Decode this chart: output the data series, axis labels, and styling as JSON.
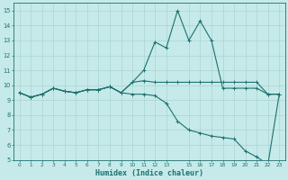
{
  "xlabel": "Humidex (Indice chaleur)",
  "xlim": [
    -0.5,
    23.5
  ],
  "ylim": [
    5,
    15.5
  ],
  "yticks": [
    5,
    6,
    7,
    8,
    9,
    10,
    11,
    12,
    13,
    14,
    15
  ],
  "xtick_vals": [
    0,
    1,
    2,
    3,
    4,
    5,
    6,
    7,
    8,
    9,
    10,
    11,
    12,
    13,
    15,
    16,
    17,
    18,
    19,
    20,
    21,
    22,
    23
  ],
  "xtick_labels": [
    "0",
    "1",
    "2",
    "3",
    "4",
    "5",
    "6",
    "7",
    "8",
    "9",
    "10",
    "11",
    "12",
    "13",
    "15",
    "16",
    "17",
    "18",
    "19",
    "20",
    "21",
    "22",
    "23"
  ],
  "bg_color": "#c5eae9",
  "grid_color": "#aad4d3",
  "line_color": "#1e7070",
  "line_width": 0.8,
  "marker": "+",
  "marker_size": 3,
  "curves": [
    [
      9.5,
      9.2,
      9.4,
      9.8,
      9.6,
      9.5,
      9.7,
      9.7,
      9.9,
      9.5,
      10.2,
      11.0,
      12.9,
      12.5,
      15.0,
      13.0,
      14.3,
      13.0,
      9.8,
      9.8,
      9.8,
      9.8,
      9.4,
      9.4
    ],
    [
      9.5,
      9.2,
      9.4,
      9.8,
      9.6,
      9.5,
      9.7,
      9.7,
      9.9,
      9.5,
      10.2,
      10.3,
      10.2,
      10.2,
      10.2,
      10.2,
      10.2,
      10.2,
      10.2,
      10.2,
      10.2,
      10.2,
      9.4,
      9.4
    ],
    [
      9.5,
      9.2,
      9.4,
      9.8,
      9.6,
      9.5,
      9.7,
      9.7,
      9.9,
      9.5,
      9.4,
      9.4,
      9.3,
      8.8,
      7.6,
      7.0,
      6.8,
      6.6,
      6.5,
      6.4,
      5.6,
      5.2,
      4.7,
      9.4
    ]
  ]
}
